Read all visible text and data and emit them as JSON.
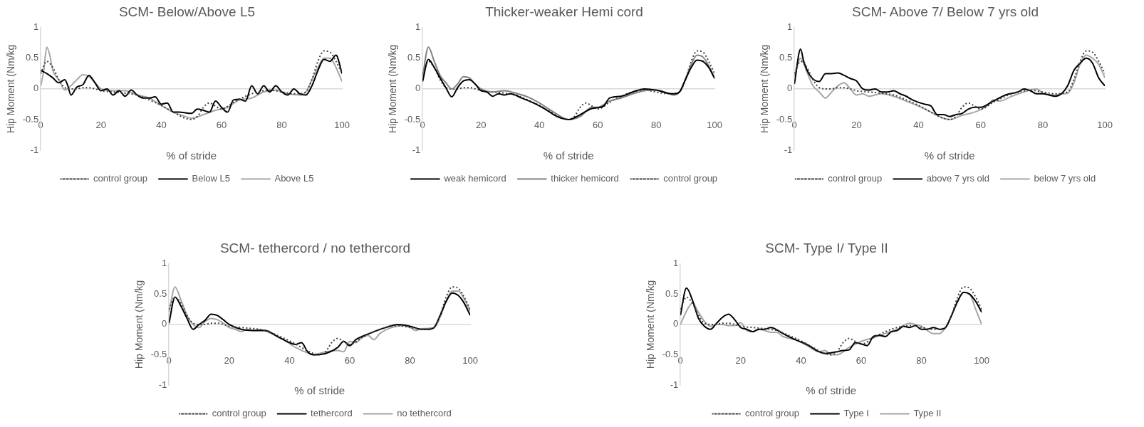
{
  "chart_data": [
    {
      "type": "line",
      "title": "SCM- Below/Above L5",
      "xlabel": "% of stride",
      "ylabel": "Hip Moment (Nm/kg",
      "xlim": [
        0,
        100
      ],
      "xticks": [
        0,
        20,
        40,
        60,
        80,
        100
      ],
      "ylim": [
        -1,
        1
      ],
      "yticks": [
        -1,
        -0.5,
        0,
        0.5,
        1
      ],
      "legend": "bottom",
      "marker": "none",
      "series": [
        {
          "name": "control group",
          "color": "#404040",
          "line_style": "dotted",
          "x": [
            0,
            2,
            4,
            6,
            8,
            10,
            12,
            14,
            16,
            18,
            20,
            24,
            28,
            32,
            36,
            40,
            44,
            48,
            50,
            52,
            54,
            56,
            58,
            60,
            64,
            68,
            72,
            76,
            80,
            84,
            88,
            90,
            92,
            94,
            96,
            98,
            100
          ],
          "values": [
            0.25,
            0.45,
            0.35,
            0.15,
            0.02,
            0,
            0,
            0.02,
            0.02,
            0,
            -0.03,
            -0.05,
            -0.07,
            -0.1,
            -0.18,
            -0.27,
            -0.38,
            -0.48,
            -0.5,
            -0.45,
            -0.3,
            -0.23,
            -0.28,
            -0.33,
            -0.22,
            -0.12,
            -0.05,
            -0.02,
            -0.05,
            -0.08,
            -0.05,
            0.15,
            0.45,
            0.62,
            0.6,
            0.45,
            0.25
          ]
        },
        {
          "name": "Below L5",
          "color": "#000000",
          "line_style": "solid",
          "x": [
            0,
            2,
            4,
            6,
            8,
            9,
            10,
            12,
            14,
            16,
            18,
            20,
            22,
            24,
            26,
            28,
            30,
            32,
            34,
            36,
            38,
            40,
            42,
            44,
            46,
            50,
            52,
            54,
            56,
            58,
            60,
            62,
            64,
            66,
            68,
            70,
            72,
            74,
            76,
            78,
            80,
            82,
            84,
            86,
            88,
            90,
            92,
            94,
            96,
            98,
            100
          ],
          "values": [
            0.3,
            0.25,
            0.18,
            0.1,
            0.15,
            0.05,
            -0.1,
            0.03,
            0.07,
            0.22,
            0.1,
            -0.03,
            0,
            -0.1,
            -0.03,
            -0.12,
            -0.02,
            -0.1,
            -0.15,
            -0.15,
            -0.13,
            -0.25,
            -0.23,
            -0.38,
            -0.38,
            -0.4,
            -0.33,
            -0.35,
            -0.38,
            -0.2,
            -0.3,
            -0.38,
            -0.18,
            -0.17,
            -0.2,
            0.05,
            -0.08,
            0.05,
            -0.05,
            0.05,
            -0.05,
            -0.1,
            0,
            -0.08,
            -0.1,
            0.05,
            0.3,
            0.48,
            0.45,
            0.55,
            0.25
          ]
        },
        {
          "name": "Above L5",
          "color": "#a6a6a6",
          "line_style": "solid",
          "x": [
            0,
            1,
            2,
            3,
            4,
            6,
            8,
            10,
            12,
            14,
            16,
            18,
            20,
            24,
            28,
            32,
            36,
            40,
            44,
            48,
            50,
            54,
            58,
            62,
            66,
            70,
            74,
            78,
            82,
            86,
            88,
            90,
            92,
            94,
            96,
            98,
            100
          ],
          "values": [
            0.05,
            0.3,
            0.68,
            0.55,
            0.3,
            0.15,
            -0.02,
            0.05,
            0.15,
            0.23,
            0.2,
            0.1,
            0,
            -0.03,
            -0.03,
            -0.1,
            -0.15,
            -0.27,
            -0.38,
            -0.45,
            -0.48,
            -0.42,
            -0.35,
            -0.3,
            -0.18,
            -0.15,
            -0.05,
            -0.02,
            -0.08,
            -0.1,
            -0.05,
            0.15,
            0.35,
            0.5,
            0.5,
            0.35,
            0.12
          ]
        }
      ]
    },
    {
      "type": "line",
      "title": "Thicker-weaker Hemi cord",
      "xlabel": "% of stride",
      "ylabel": "Hip Moment (Nm/kg",
      "xlim": [
        0,
        100
      ],
      "xticks": [
        0,
        20,
        40,
        60,
        80,
        100
      ],
      "ylim": [
        -1,
        1
      ],
      "yticks": [
        -1,
        -0.5,
        0,
        0.5,
        1
      ],
      "legend": "bottom",
      "marker": "none",
      "series": [
        {
          "name": "weak hemicord",
          "color": "#000000",
          "line_style": "solid",
          "x": [
            0,
            2,
            4,
            6,
            8,
            10,
            12,
            14,
            16,
            18,
            20,
            22,
            24,
            26,
            28,
            30,
            34,
            38,
            42,
            46,
            50,
            54,
            58,
            62,
            64,
            68,
            72,
            76,
            80,
            84,
            86,
            88,
            90,
            92,
            94,
            96,
            98,
            100
          ],
          "values": [
            0.12,
            0.48,
            0.35,
            0.18,
            0.02,
            -0.13,
            0.02,
            0.13,
            0.15,
            0.08,
            -0.03,
            -0.05,
            -0.12,
            -0.08,
            -0.1,
            -0.08,
            -0.15,
            -0.23,
            -0.33,
            -0.45,
            -0.5,
            -0.42,
            -0.32,
            -0.28,
            -0.15,
            -0.12,
            -0.05,
            0,
            -0.02,
            -0.07,
            -0.08,
            -0.05,
            0.15,
            0.35,
            0.47,
            0.45,
            0.35,
            0.17
          ]
        },
        {
          "name": "thicker hemicord",
          "color": "#808080",
          "line_style": "solid",
          "x": [
            0,
            2,
            4,
            6,
            8,
            10,
            12,
            14,
            16,
            18,
            20,
            24,
            28,
            32,
            36,
            40,
            44,
            48,
            50,
            54,
            58,
            60,
            64,
            68,
            72,
            76,
            80,
            84,
            86,
            88,
            90,
            92,
            94,
            96,
            98,
            100
          ],
          "values": [
            0.2,
            0.68,
            0.45,
            0.22,
            0.1,
            0,
            0.08,
            0.2,
            0.18,
            0.08,
            0,
            -0.05,
            -0.03,
            -0.07,
            -0.13,
            -0.23,
            -0.35,
            -0.47,
            -0.5,
            -0.45,
            -0.3,
            -0.3,
            -0.2,
            -0.15,
            -0.08,
            -0.03,
            -0.02,
            -0.07,
            -0.1,
            -0.05,
            0.15,
            0.4,
            0.55,
            0.52,
            0.38,
            0.18
          ]
        },
        {
          "name": "control group",
          "color": "#404040",
          "line_style": "dotted",
          "x": [
            0,
            2,
            4,
            6,
            8,
            10,
            12,
            14,
            16,
            18,
            20,
            24,
            28,
            32,
            36,
            40,
            44,
            48,
            50,
            52,
            54,
            56,
            58,
            60,
            64,
            68,
            72,
            76,
            80,
            84,
            88,
            90,
            92,
            94,
            96,
            98,
            100
          ],
          "values": [
            0.25,
            0.45,
            0.35,
            0.15,
            0.02,
            0,
            0,
            0.02,
            0.02,
            0,
            -0.03,
            -0.05,
            -0.07,
            -0.1,
            -0.18,
            -0.27,
            -0.38,
            -0.48,
            -0.5,
            -0.45,
            -0.3,
            -0.23,
            -0.28,
            -0.33,
            -0.22,
            -0.12,
            -0.05,
            -0.02,
            -0.05,
            -0.08,
            -0.05,
            0.15,
            0.45,
            0.62,
            0.6,
            0.45,
            0.25
          ]
        }
      ]
    },
    {
      "type": "line",
      "title": "SCM- Above 7/ Below 7 yrs old",
      "xlabel": "% of stride",
      "ylabel": "Hip Moment (Nm/kg",
      "xlim": [
        0,
        100
      ],
      "xticks": [
        0,
        20,
        40,
        60,
        80,
        100
      ],
      "ylim": [
        -1,
        1
      ],
      "yticks": [
        -1,
        -0.5,
        0,
        0.5,
        1
      ],
      "legend": "bottom",
      "marker": "none",
      "series": [
        {
          "name": "control group",
          "color": "#404040",
          "line_style": "dotted",
          "x": [
            0,
            2,
            4,
            6,
            8,
            10,
            12,
            14,
            16,
            18,
            20,
            24,
            28,
            32,
            36,
            40,
            44,
            48,
            50,
            52,
            54,
            56,
            58,
            60,
            64,
            68,
            72,
            76,
            80,
            84,
            88,
            90,
            92,
            94,
            96,
            98,
            100
          ],
          "values": [
            0.25,
            0.45,
            0.35,
            0.15,
            0.02,
            0,
            0,
            0.02,
            0.02,
            0,
            -0.03,
            -0.05,
            -0.07,
            -0.1,
            -0.18,
            -0.27,
            -0.38,
            -0.48,
            -0.5,
            -0.45,
            -0.3,
            -0.23,
            -0.28,
            -0.33,
            -0.22,
            -0.12,
            -0.05,
            -0.02,
            -0.05,
            -0.08,
            -0.05,
            0.15,
            0.45,
            0.62,
            0.6,
            0.45,
            0.25
          ]
        },
        {
          "name": "above 7 yrs old",
          "color": "#000000",
          "line_style": "solid",
          "x": [
            0,
            2,
            3,
            5,
            8,
            10,
            12,
            14,
            16,
            18,
            20,
            22,
            24,
            26,
            28,
            30,
            32,
            34,
            36,
            38,
            40,
            42,
            44,
            46,
            48,
            50,
            52,
            54,
            56,
            58,
            60,
            64,
            68,
            72,
            74,
            76,
            78,
            80,
            84,
            86,
            88,
            90,
            92,
            94,
            96,
            98,
            100
          ],
          "values": [
            0.08,
            0.65,
            0.45,
            0.22,
            0.12,
            0.25,
            0.25,
            0.26,
            0.22,
            0.17,
            0.13,
            0,
            -0.02,
            0,
            -0.05,
            -0.05,
            -0.03,
            -0.08,
            -0.12,
            -0.18,
            -0.22,
            -0.25,
            -0.28,
            -0.42,
            -0.42,
            -0.45,
            -0.42,
            -0.4,
            -0.33,
            -0.3,
            -0.3,
            -0.2,
            -0.1,
            -0.05,
            0,
            -0.03,
            -0.08,
            -0.08,
            -0.12,
            -0.08,
            0.05,
            0.3,
            0.42,
            0.5,
            0.42,
            0.18,
            0.05
          ]
        },
        {
          "name": "below 7 yrs old",
          "color": "#a6a6a6",
          "line_style": "solid",
          "x": [
            0,
            2,
            4,
            6,
            8,
            10,
            12,
            14,
            16,
            18,
            20,
            22,
            24,
            28,
            32,
            36,
            40,
            44,
            48,
            50,
            54,
            58,
            62,
            64,
            66,
            70,
            74,
            78,
            80,
            84,
            86,
            88,
            90,
            92,
            94,
            96,
            98,
            100
          ],
          "values": [
            0.2,
            0.5,
            0.28,
            0.05,
            -0.05,
            -0.15,
            -0.05,
            0.05,
            0.1,
            0,
            -0.1,
            -0.08,
            -0.12,
            -0.08,
            -0.12,
            -0.2,
            -0.28,
            -0.38,
            -0.48,
            -0.5,
            -0.43,
            -0.38,
            -0.28,
            -0.18,
            -0.2,
            -0.12,
            -0.05,
            0,
            -0.07,
            -0.1,
            -0.08,
            -0.07,
            0.1,
            0.4,
            0.55,
            0.5,
            0.4,
            0.18
          ]
        }
      ]
    },
    {
      "type": "line",
      "title": "SCM- tethercord / no tethercord",
      "xlabel": "% of stride",
      "ylabel": "Hip Moment (Nm/kg",
      "xlim": [
        0,
        100
      ],
      "xticks": [
        0,
        20,
        40,
        60,
        80,
        100
      ],
      "ylim": [
        -1,
        1
      ],
      "yticks": [
        -1,
        -0.5,
        0,
        0.5,
        1
      ],
      "legend": "bottom",
      "marker": "none",
      "series": [
        {
          "name": "control group",
          "color": "#404040",
          "line_style": "dotted",
          "x": [
            0,
            2,
            4,
            6,
            8,
            10,
            12,
            14,
            16,
            18,
            20,
            24,
            28,
            32,
            36,
            40,
            44,
            48,
            50,
            52,
            54,
            56,
            58,
            60,
            64,
            68,
            72,
            76,
            80,
            84,
            88,
            90,
            92,
            94,
            96,
            98,
            100
          ],
          "values": [
            0.25,
            0.45,
            0.35,
            0.15,
            0.02,
            0,
            0,
            0.02,
            0.02,
            0,
            -0.03,
            -0.05,
            -0.07,
            -0.1,
            -0.18,
            -0.27,
            -0.38,
            -0.48,
            -0.5,
            -0.45,
            -0.3,
            -0.23,
            -0.28,
            -0.33,
            -0.22,
            -0.12,
            -0.05,
            -0.02,
            -0.05,
            -0.08,
            -0.05,
            0.15,
            0.45,
            0.62,
            0.6,
            0.45,
            0.25
          ]
        },
        {
          "name": "tethercord",
          "color": "#000000",
          "line_style": "solid",
          "x": [
            0,
            2,
            4,
            6,
            8,
            10,
            12,
            14,
            16,
            18,
            20,
            24,
            28,
            32,
            36,
            40,
            42,
            44,
            46,
            48,
            52,
            56,
            58,
            60,
            62,
            64,
            68,
            72,
            76,
            80,
            84,
            86,
            88,
            90,
            92,
            94,
            96,
            98,
            100
          ],
          "values": [
            0.02,
            0.45,
            0.3,
            0.1,
            -0.08,
            0,
            0.07,
            0.17,
            0.15,
            0.08,
            0,
            -0.08,
            -0.1,
            -0.1,
            -0.2,
            -0.3,
            -0.33,
            -0.3,
            -0.45,
            -0.5,
            -0.48,
            -0.38,
            -0.28,
            -0.35,
            -0.25,
            -0.2,
            -0.12,
            -0.05,
            0,
            -0.03,
            -0.08,
            -0.08,
            -0.05,
            0.15,
            0.38,
            0.52,
            0.48,
            0.35,
            0.15
          ]
        },
        {
          "name": "no tethercord",
          "color": "#a6a6a6",
          "line_style": "solid",
          "x": [
            0,
            2,
            4,
            6,
            8,
            10,
            12,
            14,
            16,
            18,
            20,
            22,
            24,
            26,
            28,
            30,
            34,
            38,
            42,
            46,
            48,
            52,
            56,
            58,
            60,
            62,
            64,
            66,
            68,
            70,
            74,
            78,
            80,
            82,
            84,
            88,
            90,
            92,
            94,
            96,
            98,
            100
          ],
          "values": [
            0.2,
            0.62,
            0.4,
            0.15,
            0,
            -0.05,
            0.05,
            0.1,
            0.08,
            0.02,
            -0.05,
            -0.08,
            -0.12,
            -0.08,
            -0.1,
            -0.08,
            -0.15,
            -0.25,
            -0.38,
            -0.47,
            -0.5,
            -0.45,
            -0.43,
            -0.45,
            -0.28,
            -0.3,
            -0.22,
            -0.18,
            -0.25,
            -0.15,
            -0.05,
            -0.02,
            -0.05,
            -0.1,
            -0.07,
            -0.05,
            0.12,
            0.38,
            0.55,
            0.55,
            0.42,
            0.22
          ]
        }
      ]
    },
    {
      "type": "line",
      "title": "SCM- Type I/ Type II",
      "xlabel": "% of stride",
      "ylabel": "Hip Moment (Nm/kg",
      "xlim": [
        0,
        100
      ],
      "xticks": [
        0,
        20,
        40,
        60,
        80,
        100
      ],
      "ylim": [
        -1,
        1
      ],
      "yticks": [
        -1,
        -0.5,
        0,
        0.5,
        1
      ],
      "legend": "bottom",
      "marker": "none",
      "series": [
        {
          "name": "control group",
          "color": "#404040",
          "line_style": "dotted",
          "x": [
            0,
            2,
            4,
            6,
            8,
            10,
            12,
            14,
            16,
            18,
            20,
            24,
            28,
            32,
            36,
            40,
            44,
            48,
            50,
            52,
            54,
            56,
            58,
            60,
            64,
            68,
            72,
            76,
            80,
            84,
            88,
            90,
            92,
            94,
            96,
            98,
            100
          ],
          "values": [
            0.25,
            0.45,
            0.35,
            0.15,
            0.02,
            0,
            0,
            0.02,
            0.02,
            0,
            -0.03,
            -0.05,
            -0.07,
            -0.1,
            -0.18,
            -0.27,
            -0.38,
            -0.48,
            -0.5,
            -0.45,
            -0.3,
            -0.23,
            -0.28,
            -0.33,
            -0.22,
            -0.12,
            -0.05,
            -0.02,
            -0.05,
            -0.08,
            -0.05,
            0.15,
            0.45,
            0.62,
            0.6,
            0.45,
            0.25
          ]
        },
        {
          "name": "Type I",
          "color": "#000000",
          "line_style": "solid",
          "x": [
            0,
            2,
            4,
            6,
            8,
            10,
            12,
            14,
            16,
            18,
            20,
            22,
            24,
            26,
            28,
            30,
            34,
            38,
            42,
            46,
            48,
            52,
            54,
            56,
            58,
            60,
            62,
            64,
            66,
            68,
            70,
            72,
            74,
            76,
            78,
            80,
            82,
            84,
            86,
            88,
            90,
            92,
            94,
            96,
            98,
            100
          ],
          "values": [
            0.15,
            0.6,
            0.4,
            0.1,
            -0.03,
            -0.08,
            0.02,
            0.12,
            0.17,
            0.08,
            -0.05,
            -0.08,
            -0.12,
            -0.08,
            -0.08,
            -0.05,
            -0.15,
            -0.25,
            -0.33,
            -0.45,
            -0.48,
            -0.45,
            -0.43,
            -0.42,
            -0.3,
            -0.32,
            -0.35,
            -0.2,
            -0.18,
            -0.2,
            -0.12,
            -0.1,
            -0.03,
            -0.05,
            -0.02,
            -0.08,
            -0.08,
            -0.05,
            -0.08,
            -0.05,
            0.15,
            0.38,
            0.53,
            0.5,
            0.38,
            0.2
          ]
        },
        {
          "name": "Type II",
          "color": "#a6a6a6",
          "line_style": "solid",
          "x": [
            0,
            2,
            4,
            6,
            8,
            10,
            12,
            14,
            16,
            18,
            20,
            22,
            24,
            26,
            28,
            30,
            32,
            34,
            38,
            42,
            46,
            48,
            50,
            52,
            56,
            60,
            64,
            68,
            72,
            76,
            78,
            80,
            84,
            86,
            88,
            90,
            92,
            94,
            96,
            98,
            100
          ],
          "values": [
            0,
            0.22,
            0.35,
            0.2,
            0.05,
            -0.03,
            0,
            0,
            -0.02,
            -0.02,
            0.03,
            -0.1,
            -0.12,
            -0.08,
            -0.1,
            -0.13,
            -0.13,
            -0.2,
            -0.25,
            -0.35,
            -0.45,
            -0.43,
            -0.5,
            -0.5,
            -0.38,
            -0.28,
            -0.22,
            -0.15,
            -0.08,
            0.02,
            0,
            -0.03,
            -0.15,
            -0.15,
            -0.05,
            0.15,
            0.38,
            0.53,
            0.5,
            0.25,
            0
          ]
        }
      ]
    }
  ]
}
